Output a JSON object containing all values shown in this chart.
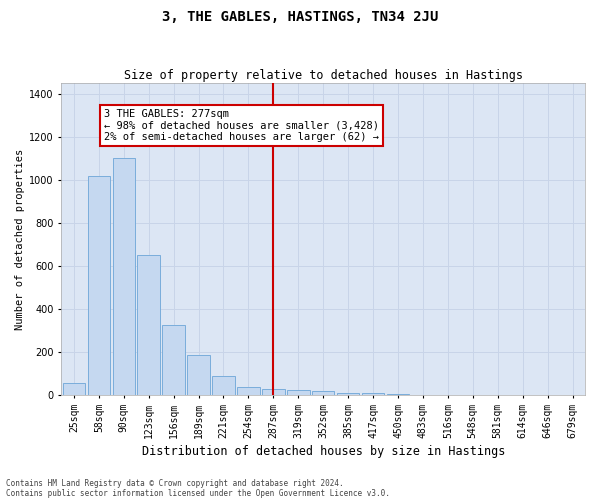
{
  "title": "3, THE GABLES, HASTINGS, TN34 2JU",
  "subtitle": "Size of property relative to detached houses in Hastings",
  "xlabel": "Distribution of detached houses by size in Hastings",
  "ylabel": "Number of detached properties",
  "bar_labels": [
    "25sqm",
    "58sqm",
    "90sqm",
    "123sqm",
    "156sqm",
    "189sqm",
    "221sqm",
    "254sqm",
    "287sqm",
    "319sqm",
    "352sqm",
    "385sqm",
    "417sqm",
    "450sqm",
    "483sqm",
    "516sqm",
    "548sqm",
    "581sqm",
    "614sqm",
    "646sqm",
    "679sqm"
  ],
  "bar_values": [
    55,
    1020,
    1100,
    650,
    325,
    185,
    85,
    35,
    25,
    20,
    15,
    10,
    8,
    5,
    0,
    0,
    0,
    0,
    0,
    0,
    0
  ],
  "bar_color": "#c5d8f0",
  "bar_edge_color": "#7aaddb",
  "vline_x_idx": 8,
  "vline_color": "#cc0000",
  "annotation_text": "3 THE GABLES: 277sqm\n← 98% of detached houses are smaller (3,428)\n2% of semi-detached houses are larger (62) →",
  "annotation_box_color": "#cc0000",
  "annotation_box_facecolor": "white",
  "ylim": [
    0,
    1450
  ],
  "yticks": [
    0,
    200,
    400,
    600,
    800,
    1000,
    1200,
    1400
  ],
  "grid_color": "#c8d4e8",
  "bg_color": "#dce6f4",
  "title_fontsize": 10,
  "subtitle_fontsize": 8.5,
  "ylabel_fontsize": 7.5,
  "xlabel_fontsize": 8.5,
  "tick_fontsize": 7,
  "footer_line1": "Contains HM Land Registry data © Crown copyright and database right 2024.",
  "footer_line2": "Contains public sector information licensed under the Open Government Licence v3.0."
}
